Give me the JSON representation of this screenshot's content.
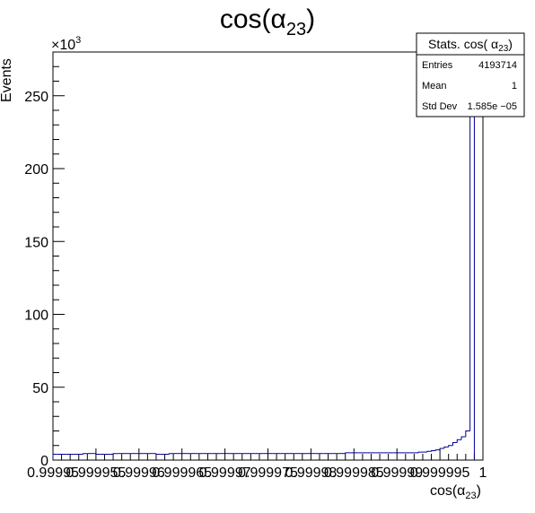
{
  "chart_data": {
    "type": "bar",
    "title": "cos(α23)",
    "xlabel": "cos(α23)",
    "ylabel": "Events",
    "y_exponent_label": "×10³",
    "y_scale": 1000,
    "xlim": [
      0.99995,
      1.0
    ],
    "ylim": [
      0,
      280000
    ],
    "x_tick_labels": [
      "0.99995",
      "0.999955",
      "0.99996",
      "0.999965",
      "0.99997",
      "0.999975",
      "0.99998",
      "0.999985",
      "0.99999",
      "0.999995",
      "1"
    ],
    "x_tick_values": [
      0.99995,
      0.999955,
      0.99996,
      0.999965,
      0.99997,
      0.999975,
      0.99998,
      0.999985,
      0.99999,
      0.999995,
      1.0
    ],
    "y_tick_labels": [
      "0",
      "50",
      "100",
      "150",
      "200",
      "250"
    ],
    "y_tick_values": [
      0,
      50000,
      100000,
      150000,
      200000,
      250000
    ],
    "bin_low": 0.99995,
    "bin_width": 5e-07,
    "values": [
      4000,
      4000,
      4000,
      4000,
      4000,
      4000,
      4000,
      4500,
      4500,
      4500,
      4000,
      4000,
      4000,
      4000,
      4500,
      4500,
      4500,
      4500,
      4500,
      4500,
      4500,
      4500,
      4500,
      4500,
      4000,
      4000,
      4000,
      4500,
      4500,
      4500,
      4500,
      4500,
      4500,
      4500,
      4500,
      4500,
      4500,
      4500,
      4500,
      4500,
      4500,
      4500,
      4500,
      4500,
      4500,
      4500,
      4500,
      4500,
      4500,
      4500,
      4500,
      4500,
      4500,
      4500,
      4500,
      4500,
      4500,
      4500,
      4500,
      4500,
      4500,
      4500,
      4500,
      4500,
      4500,
      4500,
      4500,
      4500,
      5000,
      5000,
      5000,
      5000,
      5000,
      5000,
      5000,
      5000,
      5000,
      5000,
      5000,
      5000,
      5000,
      5000,
      5000,
      5000,
      5000,
      5500,
      5500,
      6000,
      6500,
      7000,
      8000,
      9000,
      10000,
      12000,
      14000,
      16000,
      20000,
      276000
    ],
    "line_color": "#000099",
    "grid": false,
    "legend": "none",
    "stats": {
      "title": "Stats. cos( α23)",
      "rows": [
        {
          "label": "Entries",
          "value": "4193714"
        },
        {
          "label": "Mean",
          "value": "1"
        },
        {
          "label": "Std Dev",
          "value": "1.585e −05"
        }
      ]
    }
  }
}
